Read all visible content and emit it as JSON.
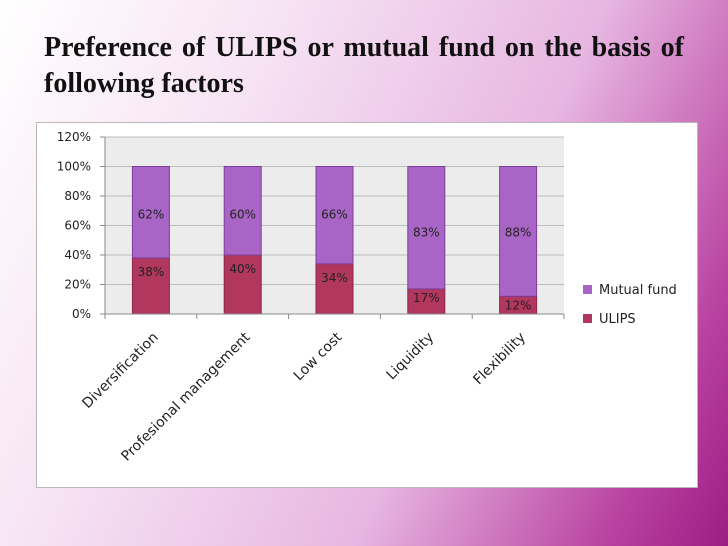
{
  "slide": {
    "title": "Preference of ULIPS or mutual fund on the basis of following factors"
  },
  "colors": {
    "ulips": "#b2375e",
    "ulips_edge": "#8e2549",
    "mutual_fund": "#a865c6",
    "mutual_fund_edge": "#7b3f9a",
    "plot_area": "#ececec",
    "gridline": "#bdbdbd",
    "axis": "#8a8a8a"
  },
  "chart_data": {
    "type": "bar",
    "stacked": true,
    "title": "",
    "xlabel": "",
    "ylabel": "",
    "categories": [
      "Diversification",
      "Profesional management",
      "Low cost",
      "Liquidity",
      "Flexibility"
    ],
    "series": [
      {
        "name": "ULIPS",
        "values": [
          38,
          40,
          34,
          17,
          12
        ],
        "labels": [
          "38%",
          "40%",
          "34%",
          "17%",
          "12%"
        ]
      },
      {
        "name": "Mutual fund",
        "values": [
          62,
          60,
          66,
          83,
          88
        ],
        "labels": [
          "62%",
          "60%",
          "66%",
          "83%",
          "88%"
        ]
      }
    ],
    "ylim": [
      0,
      120
    ],
    "yticks": [
      "0%",
      "20%",
      "40%",
      "60%",
      "80%",
      "100%",
      "120%"
    ],
    "grid": true,
    "legend_placement": "right"
  }
}
